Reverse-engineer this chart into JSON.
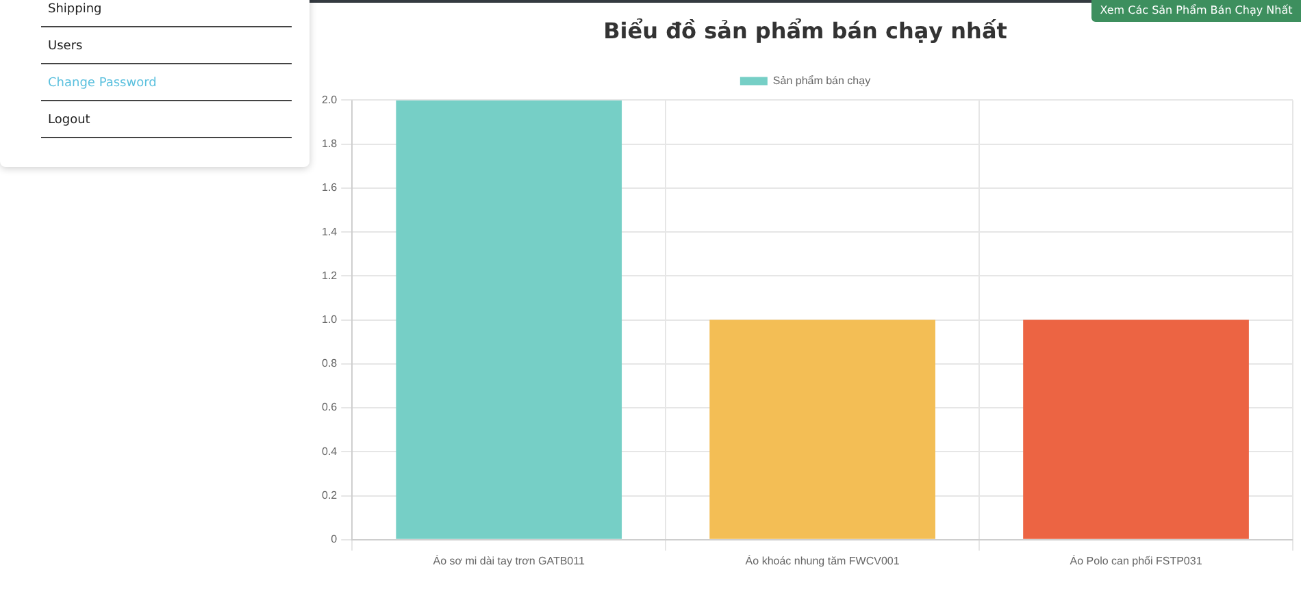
{
  "chart_data": {
    "type": "bar",
    "title": "Biểu đồ sản phẩm bán chạy nhất",
    "categories": [
      "Áo sơ mi dài tay trơn GATB011",
      "Áo khoác nhung tăm FWCV001",
      "Áo Polo can phối FSTP031"
    ],
    "series": [
      {
        "name": "Sản phẩm bán chạy",
        "colors": [
          "#76cfc6",
          "#f3be55",
          "#ec6443"
        ],
        "values": [
          2,
          1,
          1
        ]
      }
    ],
    "ylim": [
      0,
      2
    ],
    "yticks": [
      0,
      {
        "value": 0.2,
        "label": "0.2"
      },
      {
        "value": 0.4,
        "label": "0.4"
      },
      {
        "value": 0.6,
        "label": "0.6"
      },
      {
        "value": 0.8,
        "label": "0.8"
      },
      {
        "value": 1,
        "label": "1.0"
      },
      {
        "value": 1.2,
        "label": "1.2"
      },
      {
        "value": 1.4,
        "label": "1.4"
      },
      {
        "value": 1.6,
        "label": "1.6"
      },
      {
        "value": 1.8,
        "label": "1.8"
      },
      {
        "value": 2,
        "label": "2.0"
      }
    ],
    "grid": true,
    "legend": "top",
    "annotations": [
      "Shipping",
      "Users",
      "Change Password",
      "Logout",
      "Xem Các Sản Phẩm Bán Chạy Nhất"
    ]
  }
}
